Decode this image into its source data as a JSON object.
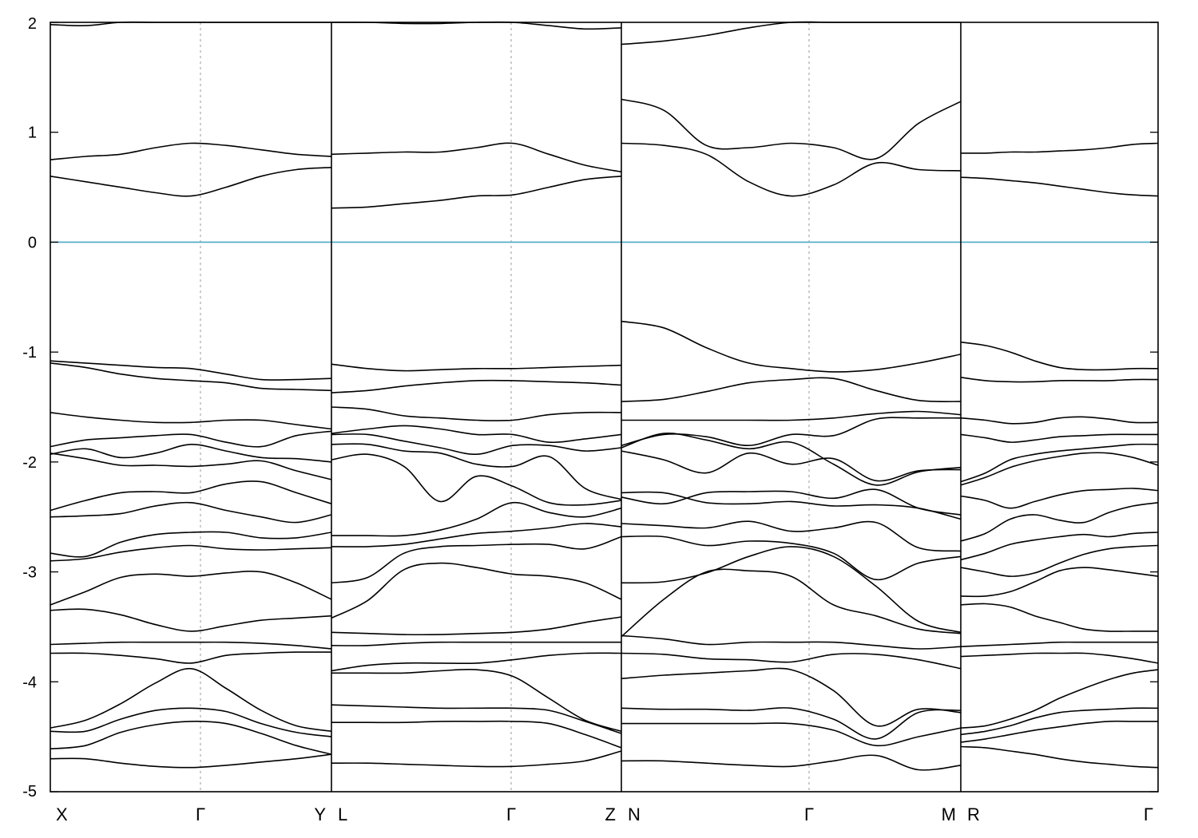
{
  "chart_data": {
    "type": "line",
    "title": "",
    "xlabel": "",
    "ylabel": "",
    "ylim": [
      -5,
      2
    ],
    "yticks": [
      -5,
      -4,
      -3,
      -2,
      -1,
      0,
      1,
      2
    ],
    "fermi_level": 0,
    "fermi_color": "#4aa8c8",
    "band_color": "#000000",
    "grid": "dashed vertical lines at Γ",
    "legend": "none",
    "segments": [
      {
        "start_label": "X",
        "end_label": "Y",
        "gamma_label": "Γ",
        "x": [
          0,
          0.125,
          0.25,
          0.375,
          0.5,
          0.625,
          0.75,
          0.875,
          1
        ],
        "bands": [
          [
            -4.7,
            -4.7,
            -4.74,
            -4.77,
            -4.78,
            -4.76,
            -4.73,
            -4.7,
            -4.66
          ],
          [
            -4.61,
            -4.58,
            -4.46,
            -4.39,
            -4.36,
            -4.38,
            -4.47,
            -4.58,
            -4.66
          ],
          [
            -4.45,
            -4.45,
            -4.34,
            -4.26,
            -4.24,
            -4.27,
            -4.38,
            -4.46,
            -4.5
          ],
          [
            -4.42,
            -4.35,
            -4.2,
            -4.01,
            -3.88,
            -4.06,
            -4.26,
            -4.4,
            -4.45
          ],
          [
            -3.74,
            -3.74,
            -3.76,
            -3.79,
            -3.83,
            -3.76,
            -3.74,
            -3.73,
            -3.73
          ],
          [
            -3.66,
            -3.65,
            -3.64,
            -3.64,
            -3.64,
            -3.64,
            -3.65,
            -3.67,
            -3.7
          ],
          [
            -3.35,
            -3.34,
            -3.39,
            -3.48,
            -3.54,
            -3.49,
            -3.44,
            -3.42,
            -3.4
          ],
          [
            -3.3,
            -3.18,
            -3.05,
            -3.02,
            -3.04,
            -3.01,
            -3.0,
            -3.1,
            -3.25
          ],
          [
            -2.9,
            -2.88,
            -2.82,
            -2.78,
            -2.76,
            -2.79,
            -2.8,
            -2.79,
            -2.78
          ],
          [
            -2.83,
            -2.86,
            -2.73,
            -2.66,
            -2.64,
            -2.64,
            -2.69,
            -2.69,
            -2.64
          ],
          [
            -2.5,
            -2.49,
            -2.47,
            -2.4,
            -2.37,
            -2.44,
            -2.5,
            -2.55,
            -2.48
          ],
          [
            -2.44,
            -2.35,
            -2.28,
            -2.27,
            -2.28,
            -2.2,
            -2.18,
            -2.28,
            -2.38
          ],
          [
            -1.92,
            -1.97,
            -2.03,
            -2.03,
            -2.04,
            -2.02,
            -1.99,
            -2.08,
            -2.16
          ],
          [
            -1.93,
            -1.88,
            -1.96,
            -1.92,
            -1.84,
            -1.9,
            -1.96,
            -1.97,
            -2.0
          ],
          [
            -1.86,
            -1.8,
            -1.78,
            -1.76,
            -1.75,
            -1.82,
            -1.86,
            -1.76,
            -1.72
          ],
          [
            -1.55,
            -1.59,
            -1.62,
            -1.64,
            -1.64,
            -1.62,
            -1.62,
            -1.66,
            -1.7
          ],
          [
            -1.1,
            -1.14,
            -1.2,
            -1.24,
            -1.26,
            -1.28,
            -1.33,
            -1.34,
            -1.35
          ],
          [
            -1.08,
            -1.1,
            -1.12,
            -1.14,
            -1.15,
            -1.2,
            -1.25,
            -1.25,
            -1.24
          ],
          [
            0.6,
            0.55,
            0.5,
            0.45,
            0.42,
            0.5,
            0.6,
            0.66,
            0.68
          ],
          [
            0.75,
            0.78,
            0.8,
            0.86,
            0.9,
            0.88,
            0.84,
            0.8,
            0.78
          ],
          [
            1.98,
            1.97,
            2.0,
            2.0,
            2.0,
            2.0,
            2.0,
            2.0,
            2.0
          ]
        ]
      },
      {
        "start_label": "L",
        "end_label": "Z",
        "gamma_label": "Γ",
        "x": [
          0,
          0.125,
          0.25,
          0.375,
          0.5,
          0.625,
          0.75,
          0.875,
          1
        ],
        "bands": [
          [
            -4.74,
            -4.74,
            -4.75,
            -4.76,
            -4.77,
            -4.77,
            -4.75,
            -4.72,
            -4.63
          ],
          [
            -4.37,
            -4.37,
            -4.37,
            -4.36,
            -4.36,
            -4.36,
            -4.38,
            -4.48,
            -4.6
          ],
          [
            -4.21,
            -4.22,
            -4.23,
            -4.24,
            -4.24,
            -4.24,
            -4.26,
            -4.36,
            -4.47
          ],
          [
            -3.92,
            -3.92,
            -3.92,
            -3.9,
            -3.89,
            -3.95,
            -4.15,
            -4.35,
            -4.45
          ],
          [
            -3.9,
            -3.85,
            -3.83,
            -3.83,
            -3.83,
            -3.8,
            -3.76,
            -3.74,
            -3.74
          ],
          [
            -3.67,
            -3.67,
            -3.65,
            -3.64,
            -3.64,
            -3.64,
            -3.64,
            -3.64,
            -3.64
          ],
          [
            -3.55,
            -3.56,
            -3.57,
            -3.57,
            -3.56,
            -3.55,
            -3.52,
            -3.46,
            -3.41
          ],
          [
            -3.42,
            -3.26,
            -2.98,
            -2.92,
            -2.96,
            -3.02,
            -3.04,
            -3.1,
            -3.25
          ],
          [
            -3.1,
            -3.05,
            -2.83,
            -2.77,
            -2.76,
            -2.75,
            -2.75,
            -2.79,
            -2.68
          ],
          [
            -2.77,
            -2.77,
            -2.75,
            -2.7,
            -2.65,
            -2.63,
            -2.6,
            -2.56,
            -2.59
          ],
          [
            -2.67,
            -2.67,
            -2.67,
            -2.62,
            -2.52,
            -2.37,
            -2.46,
            -2.5,
            -2.42
          ],
          [
            -1.98,
            -1.93,
            -2.04,
            -2.36,
            -2.13,
            -2.22,
            -2.37,
            -2.39,
            -2.35
          ],
          [
            -1.84,
            -1.84,
            -1.9,
            -1.92,
            -2.02,
            -2.04,
            -1.95,
            -2.24,
            -2.34
          ],
          [
            -1.75,
            -1.75,
            -1.81,
            -1.87,
            -1.93,
            -1.85,
            -1.85,
            -1.9,
            -1.87
          ],
          [
            -1.74,
            -1.7,
            -1.67,
            -1.7,
            -1.75,
            -1.75,
            -1.82,
            -1.79,
            -1.75
          ],
          [
            -1.5,
            -1.52,
            -1.58,
            -1.6,
            -1.62,
            -1.62,
            -1.57,
            -1.55,
            -1.55
          ],
          [
            -1.37,
            -1.35,
            -1.31,
            -1.28,
            -1.26,
            -1.26,
            -1.27,
            -1.28,
            -1.3
          ],
          [
            -1.11,
            -1.15,
            -1.17,
            -1.16,
            -1.15,
            -1.15,
            -1.14,
            -1.13,
            -1.12
          ],
          [
            0.31,
            0.32,
            0.35,
            0.38,
            0.42,
            0.43,
            0.5,
            0.57,
            0.6
          ],
          [
            0.8,
            0.81,
            0.82,
            0.82,
            0.86,
            0.9,
            0.8,
            0.7,
            0.64
          ],
          [
            2.0,
            2.0,
            1.99,
            1.99,
            2.0,
            2.0,
            1.97,
            1.94,
            1.95
          ]
        ]
      },
      {
        "start_label": "N",
        "end_label": "M",
        "gamma_label": "Γ",
        "x": [
          0,
          0.125,
          0.25,
          0.375,
          0.5,
          0.625,
          0.75,
          0.875,
          1
        ],
        "bands": [
          [
            -4.72,
            -4.72,
            -4.74,
            -4.76,
            -4.77,
            -4.72,
            -4.67,
            -4.8,
            -4.76
          ],
          [
            -4.38,
            -4.38,
            -4.38,
            -4.38,
            -4.38,
            -4.44,
            -4.58,
            -4.5,
            -4.42
          ],
          [
            -4.24,
            -4.25,
            -4.25,
            -4.26,
            -4.24,
            -4.34,
            -4.52,
            -4.28,
            -4.26
          ],
          [
            -3.97,
            -3.94,
            -3.92,
            -3.9,
            -3.89,
            -4.08,
            -4.4,
            -4.25,
            -4.28
          ],
          [
            -3.74,
            -3.75,
            -3.79,
            -3.8,
            -3.82,
            -3.75,
            -3.75,
            -3.8,
            -3.88
          ],
          [
            -3.58,
            -3.61,
            -3.66,
            -3.64,
            -3.64,
            -3.64,
            -3.67,
            -3.7,
            -3.68
          ],
          [
            -3.59,
            -3.25,
            -3.0,
            -2.99,
            -3.04,
            -3.3,
            -3.4,
            -3.52,
            -3.56
          ],
          [
            -3.1,
            -3.09,
            -3.01,
            -2.86,
            -2.77,
            -2.86,
            -3.13,
            -3.45,
            -3.55
          ],
          [
            -2.68,
            -2.68,
            -2.76,
            -2.72,
            -2.74,
            -2.83,
            -3.07,
            -2.92,
            -2.86
          ],
          [
            -2.56,
            -2.58,
            -2.6,
            -2.54,
            -2.63,
            -2.6,
            -2.55,
            -2.78,
            -2.81
          ],
          [
            -2.28,
            -2.28,
            -2.37,
            -2.38,
            -2.36,
            -2.4,
            -2.39,
            -2.42,
            -2.52
          ],
          [
            -2.32,
            -2.38,
            -2.28,
            -2.27,
            -2.27,
            -2.33,
            -2.25,
            -2.42,
            -2.48
          ],
          [
            -1.9,
            -1.98,
            -2.1,
            -1.92,
            -2.02,
            -1.97,
            -2.17,
            -2.08,
            -2.07
          ],
          [
            -1.87,
            -1.74,
            -1.8,
            -1.88,
            -1.82,
            -2.02,
            -2.21,
            -2.09,
            -2.05
          ],
          [
            -1.85,
            -1.75,
            -1.77,
            -1.85,
            -1.75,
            -1.76,
            -1.61,
            -1.6,
            -1.6
          ],
          [
            -1.62,
            -1.62,
            -1.62,
            -1.62,
            -1.62,
            -1.6,
            -1.56,
            -1.54,
            -1.57
          ],
          [
            -1.45,
            -1.43,
            -1.36,
            -1.28,
            -1.25,
            -1.24,
            -1.35,
            -1.44,
            -1.45
          ],
          [
            -0.72,
            -0.78,
            -0.96,
            -1.1,
            -1.15,
            -1.18,
            -1.16,
            -1.1,
            -1.02
          ],
          [
            0.9,
            0.88,
            0.8,
            0.55,
            0.42,
            0.52,
            0.72,
            0.66,
            0.65
          ],
          [
            1.3,
            1.2,
            0.88,
            0.86,
            0.9,
            0.86,
            0.76,
            1.08,
            1.28
          ],
          [
            1.8,
            1.83,
            1.88,
            1.95,
            2.0,
            2.0,
            2.0,
            2.0,
            2.0
          ]
        ]
      },
      {
        "start_label": "R",
        "end_label": "Γ",
        "x": [
          0,
          0.125,
          0.25,
          0.375,
          0.5,
          0.625,
          0.75,
          0.875,
          1
        ],
        "bands": [
          [
            -4.59,
            -4.6,
            -4.63,
            -4.66,
            -4.7,
            -4.73,
            -4.75,
            -4.77,
            -4.78
          ],
          [
            -4.55,
            -4.52,
            -4.48,
            -4.44,
            -4.41,
            -4.38,
            -4.36,
            -4.36,
            -4.36
          ],
          [
            -4.48,
            -4.45,
            -4.4,
            -4.33,
            -4.28,
            -4.26,
            -4.25,
            -4.24,
            -4.24
          ],
          [
            -4.42,
            -4.4,
            -4.34,
            -4.26,
            -4.15,
            -4.06,
            -3.98,
            -3.92,
            -3.89
          ],
          [
            -3.77,
            -3.76,
            -3.75,
            -3.74,
            -3.74,
            -3.74,
            -3.76,
            -3.79,
            -3.83
          ],
          [
            -3.68,
            -3.67,
            -3.66,
            -3.65,
            -3.64,
            -3.64,
            -3.64,
            -3.64,
            -3.64
          ],
          [
            -3.3,
            -3.29,
            -3.32,
            -3.4,
            -3.46,
            -3.52,
            -3.54,
            -3.54,
            -3.54
          ],
          [
            -3.22,
            -3.22,
            -3.18,
            -3.09,
            -2.99,
            -2.96,
            -2.98,
            -3.01,
            -3.04
          ],
          [
            -2.96,
            -3.0,
            -3.04,
            -3.01,
            -2.92,
            -2.84,
            -2.79,
            -2.77,
            -2.76
          ],
          [
            -2.89,
            -2.83,
            -2.75,
            -2.71,
            -2.68,
            -2.66,
            -2.68,
            -2.65,
            -2.64
          ],
          [
            -2.72,
            -2.65,
            -2.52,
            -2.48,
            -2.53,
            -2.55,
            -2.46,
            -2.4,
            -2.37
          ],
          [
            -2.31,
            -2.35,
            -2.42,
            -2.36,
            -2.3,
            -2.26,
            -2.25,
            -2.24,
            -2.26
          ],
          [
            -2.21,
            -2.14,
            -2.05,
            -1.99,
            -1.95,
            -1.92,
            -1.92,
            -1.96,
            -2.03
          ],
          [
            -2.18,
            -2.1,
            -1.98,
            -1.93,
            -1.9,
            -1.88,
            -1.86,
            -1.84,
            -1.84
          ],
          [
            -1.75,
            -1.78,
            -1.82,
            -1.8,
            -1.77,
            -1.76,
            -1.75,
            -1.75,
            -1.75
          ],
          [
            -1.6,
            -1.62,
            -1.65,
            -1.64,
            -1.6,
            -1.59,
            -1.61,
            -1.64,
            -1.64
          ],
          [
            -1.23,
            -1.26,
            -1.27,
            -1.27,
            -1.26,
            -1.26,
            -1.26,
            -1.25,
            -1.25
          ],
          [
            -0.91,
            -0.94,
            -1.0,
            -1.08,
            -1.14,
            -1.16,
            -1.16,
            -1.15,
            -1.15
          ],
          [
            0.59,
            0.58,
            0.56,
            0.54,
            0.51,
            0.48,
            0.45,
            0.43,
            0.42
          ],
          [
            0.81,
            0.81,
            0.82,
            0.82,
            0.83,
            0.84,
            0.86,
            0.89,
            0.9
          ]
        ]
      }
    ]
  }
}
